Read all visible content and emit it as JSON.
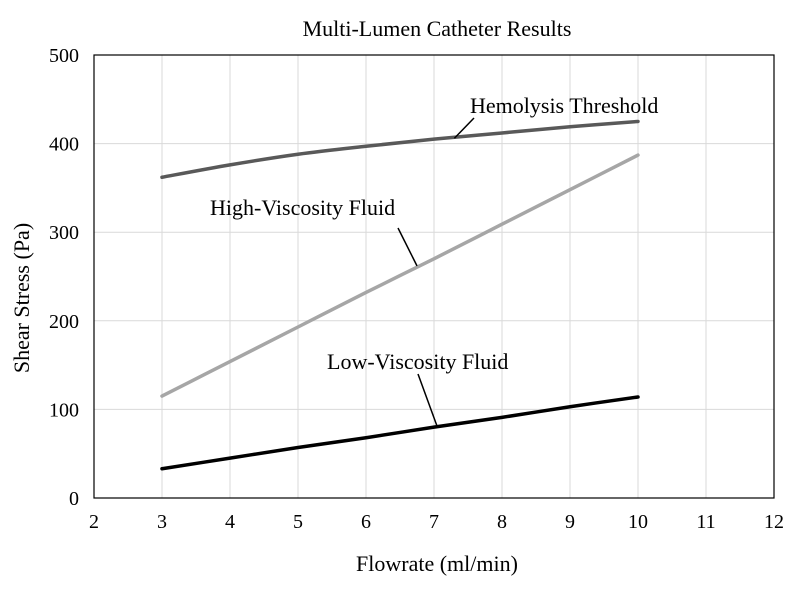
{
  "chart_data": {
    "type": "line",
    "title": "Multi-Lumen Catheter Results",
    "xlabel": "Flowrate (ml/min)",
    "ylabel": "Shear Stress (Pa)",
    "xlim": [
      2,
      12
    ],
    "ylim": [
      0,
      500
    ],
    "xticks": [
      2,
      3,
      4,
      5,
      6,
      7,
      8,
      9,
      10,
      11,
      12
    ],
    "yticks": [
      0,
      100,
      200,
      300,
      400,
      500
    ],
    "grid": true,
    "legend": "none",
    "x": [
      3,
      4,
      5,
      6,
      7,
      8,
      9,
      10
    ],
    "series": [
      {
        "name": "Hemolysis Threshold",
        "color": "#595959",
        "values": [
          362,
          376,
          388,
          397,
          405,
          412,
          419,
          425
        ]
      },
      {
        "name": "High-Viscosity Fluid",
        "color": "#a6a6a6",
        "values": [
          115,
          154,
          193,
          232,
          270,
          309,
          348,
          387
        ]
      },
      {
        "name": "Low-Viscosity Fluid",
        "color": "#000000",
        "values": [
          33,
          45,
          57,
          68,
          80,
          91,
          103,
          114
        ]
      }
    ],
    "annotations": [
      {
        "text": "Hemolysis Threshold",
        "series": 0,
        "point_x": 7.3,
        "point_y": 406
      },
      {
        "text": "High-Viscosity Fluid",
        "series": 1,
        "point_x": 6.75,
        "point_y": 262
      },
      {
        "text": "Low-Viscosity Fluid",
        "series": 2,
        "point_x": 7.05,
        "point_y": 80
      }
    ]
  }
}
